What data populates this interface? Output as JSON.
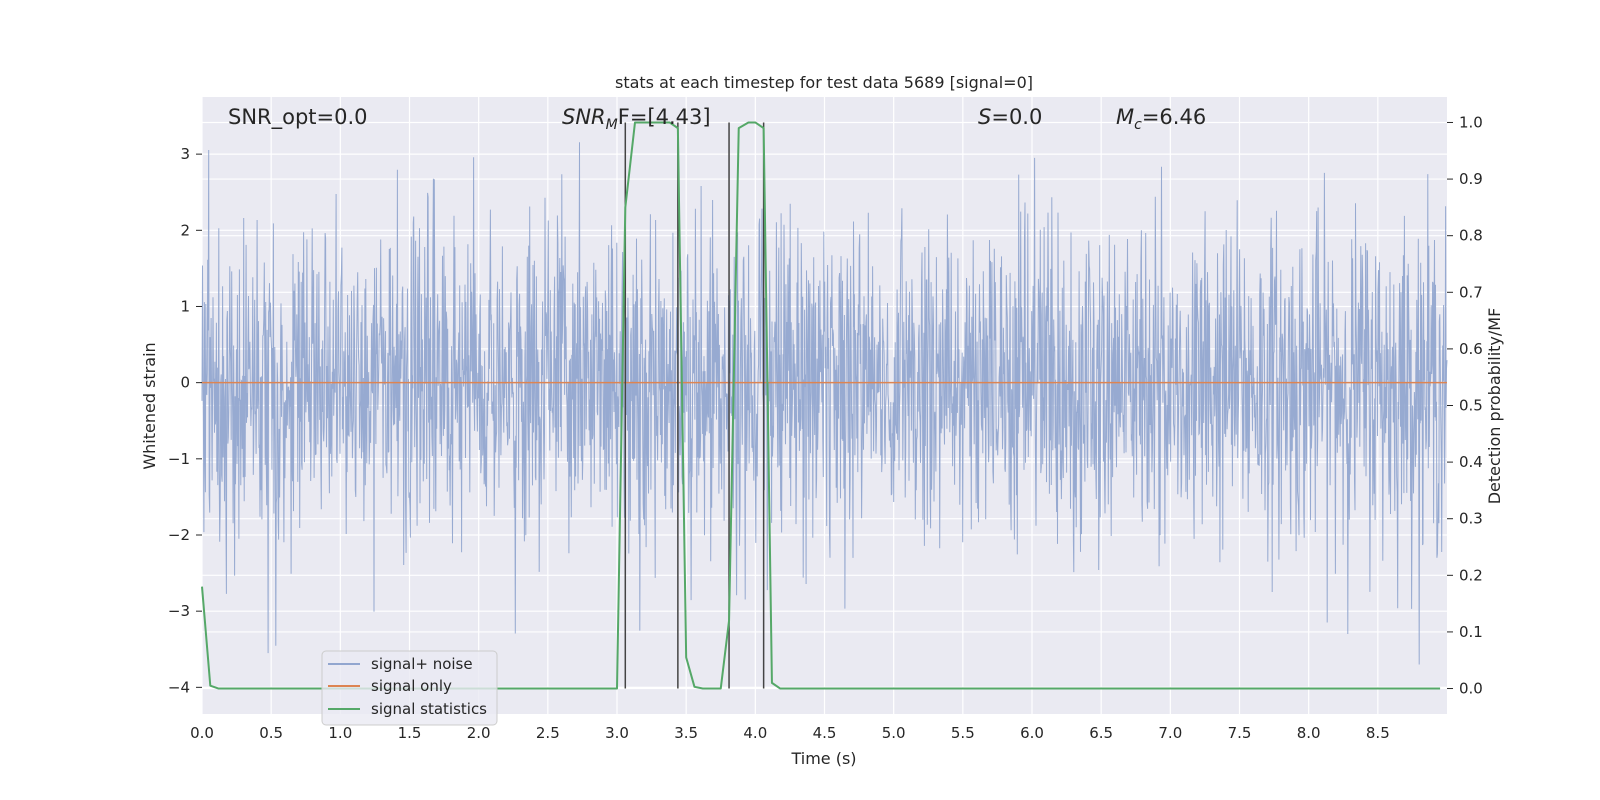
{
  "chart_data": {
    "type": "line",
    "title": "stats at each timestep for test data 5689 [signal=0]",
    "xlabel": "Time (s)",
    "ylabel": "Whitened strain",
    "ylabel_right": "Detection probability/MF",
    "xlim": [
      0.0,
      9.0
    ],
    "ylim": [
      -4.35,
      3.75
    ],
    "ylim_right": [
      -0.045,
      1.045
    ],
    "x_ticks": [
      0.0,
      0.5,
      1.0,
      1.5,
      2.0,
      2.5,
      3.0,
      3.5,
      4.0,
      4.5,
      5.0,
      5.5,
      6.0,
      6.5,
      7.0,
      7.5,
      8.0,
      8.5
    ],
    "x_tick_labels": [
      "0.0",
      "0.5",
      "1.0",
      "1.5",
      "2.0",
      "2.5",
      "3.0",
      "3.5",
      "4.0",
      "4.5",
      "5.0",
      "5.5",
      "6.0",
      "6.5",
      "7.0",
      "7.5",
      "8.0",
      "8.5"
    ],
    "y_ticks": [
      3,
      2,
      1,
      0,
      -1,
      -2,
      -3,
      -4
    ],
    "y_tick_labels": [
      "3",
      "2",
      "1",
      "0",
      "−1",
      "−2",
      "−3",
      "−4"
    ],
    "y_right_ticks": [
      1.0,
      0.9,
      0.8,
      0.7,
      0.6,
      0.5,
      0.4,
      0.3,
      0.2,
      0.1,
      0.0
    ],
    "y_right_tick_labels": [
      "1.0",
      "0.9",
      "0.8",
      "0.7",
      "0.6",
      "0.5",
      "0.4",
      "0.3",
      "0.2",
      "0.1",
      "0.0"
    ],
    "grid": true,
    "legend_position": "lower-left",
    "annotations": {
      "snr_opt": "SNR_opt=0.0",
      "snr_mf_prefix": "SNR",
      "snr_mf_sub": "M",
      "snr_mf_suffix": "F=[4.43]",
      "s_label": "S",
      "s_value": "=0.0",
      "mc_label": "M",
      "mc_sub": "c",
      "mc_value": "=6.46"
    },
    "series": [
      {
        "name": "signal+ noise",
        "color": "#92a6cf",
        "axis": "left",
        "style": "dense noise spanning about -3.7 to 3.5"
      },
      {
        "name": "signal only",
        "color": "#dd8452",
        "axis": "left",
        "x": [
          0.0,
          9.0
        ],
        "y": [
          0.0,
          0.0
        ]
      },
      {
        "name": "signal statistics",
        "color": "#55a868",
        "axis": "right",
        "x": [
          0.0,
          0.06,
          0.12,
          0.5,
          1.0,
          1.5,
          2.0,
          2.5,
          3.0,
          3.06,
          3.13,
          3.25,
          3.38,
          3.44,
          3.5,
          3.56,
          3.62,
          3.75,
          3.81,
          3.88,
          3.95,
          4.0,
          4.06,
          4.12,
          4.18,
          5.0,
          6.0,
          7.0,
          8.0,
          8.95
        ],
        "y": [
          0.18,
          0.005,
          0.0,
          0.0,
          0.0,
          0.0,
          0.0,
          0.0,
          0.0,
          0.85,
          1.0,
          1.0,
          1.0,
          0.99,
          0.055,
          0.003,
          0.0,
          0.0,
          0.12,
          0.99,
          1.0,
          1.0,
          0.99,
          0.01,
          0.0,
          0.0,
          0.0,
          0.0,
          0.0,
          0.0
        ]
      }
    ],
    "vertical_markers": [
      3.06,
      3.44,
      3.81,
      4.06
    ],
    "marker_color": "#444444"
  }
}
